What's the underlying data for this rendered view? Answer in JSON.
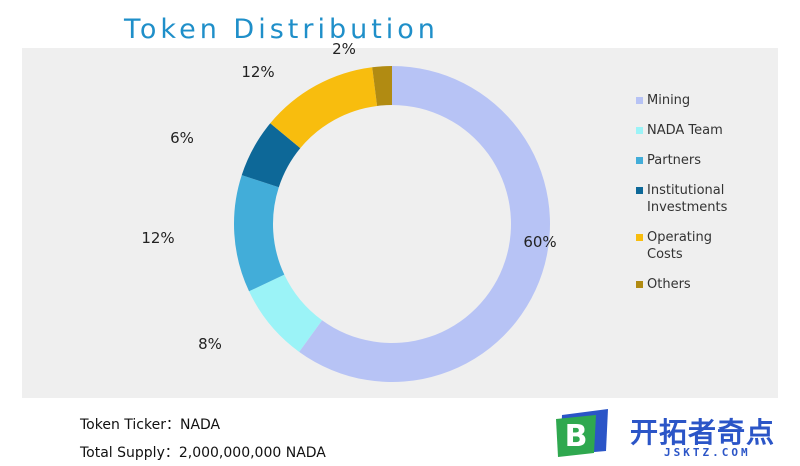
{
  "title": "Token Distribution",
  "chart_data": {
    "type": "pie",
    "donut": true,
    "title": "Token Distribution",
    "legend_position": "right",
    "series": [
      {
        "name": "Mining",
        "value": 60,
        "label": "60%",
        "color": "#b7c3f5"
      },
      {
        "name": "NADA Team",
        "value": 8,
        "label": "8%",
        "color": "#9bf3f7"
      },
      {
        "name": "Partners",
        "value": 12,
        "label": "12%",
        "color": "#42add9"
      },
      {
        "name": "Institutional Investments",
        "value": 6,
        "label": "6%",
        "color": "#0d6898"
      },
      {
        "name": "Operating Costs",
        "value": 12,
        "label": "12%",
        "color": "#f8bd0e"
      },
      {
        "name": "Others",
        "value": 2,
        "label": "2%",
        "color": "#b18b12"
      }
    ]
  },
  "legend": [
    {
      "label": "Mining",
      "color": "#b7c3f5"
    },
    {
      "label": "NADA Team",
      "color": "#9bf3f7"
    },
    {
      "label": "Partners",
      "color": "#42add9"
    },
    {
      "label": "Institutional Investments",
      "color": "#0d6898"
    },
    {
      "label": "Operating Costs",
      "color": "#f8bd0e"
    },
    {
      "label": "Others",
      "color": "#b18b12"
    }
  ],
  "info": {
    "ticker": "Token Ticker：NADA",
    "supply": "Total Supply：2,000,000,000 NADA"
  },
  "brand": {
    "logo_letter": "B",
    "name": "开拓者奇点",
    "url": "JSKTZ.COM",
    "logo_colors": [
      "#2b55c7",
      "#2fa84f"
    ]
  }
}
